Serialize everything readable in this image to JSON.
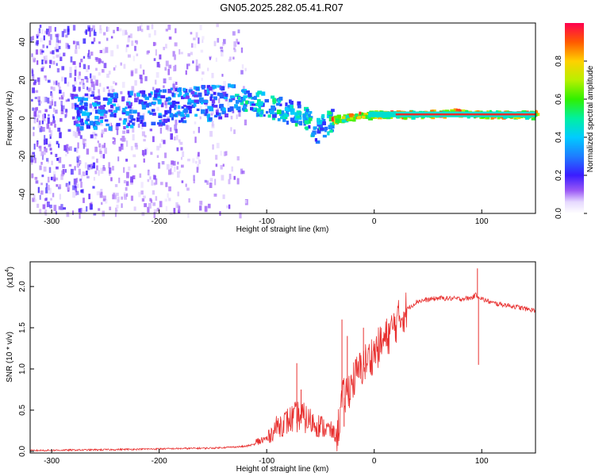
{
  "title": "GN05.2025.282.05.41.R07",
  "chart_data": [
    {
      "id": "spectrogram",
      "type": "heatmap",
      "xlabel": "Height of straight line (km)",
      "ylabel": "Frequency (Hz)",
      "xlim": [
        -320,
        150
      ],
      "ylim": [
        -50,
        50
      ],
      "xticks": [
        -300,
        -200,
        -100,
        0,
        100
      ],
      "yticks": [
        -40,
        -20,
        0,
        20,
        40
      ],
      "colorbar": {
        "label": "Normalized spectral amplitude",
        "range": [
          0,
          1
        ],
        "ticks": [
          "0.0",
          "0.2",
          "0.4",
          "0.6",
          "0.8"
        ]
      },
      "ridge": {
        "x": [
          -320,
          -280,
          -240,
          -200,
          -160,
          -130,
          -110,
          -90,
          -70,
          -60,
          -55,
          -50,
          -40,
          -30,
          -20,
          0,
          40,
          80,
          90,
          150
        ],
        "freq": [
          2,
          3,
          4,
          6,
          8,
          9,
          8,
          5,
          2,
          -3,
          -7,
          -5,
          -1,
          0,
          1,
          2,
          2,
          3,
          2,
          2
        ]
      }
    },
    {
      "id": "snr",
      "type": "line",
      "xlabel": "Height of straight line (km)",
      "ylabel": "SNR (10 * v/v)",
      "scale_note": "(x10",
      "scale_exp": "4",
      "xlim": [
        -320,
        150
      ],
      "ylim": [
        -0.02,
        2.3
      ],
      "xticks": [
        -300,
        -200,
        -100,
        0,
        100
      ],
      "yticks": [
        "0.0",
        "0.5",
        "1.0",
        "1.5",
        "2.0"
      ],
      "series": [
        {
          "name": "SNR",
          "color": "#e8302f",
          "envelope_x": [
            -320,
            -250,
            -150,
            -120,
            -100,
            -90,
            -80,
            -70,
            -60,
            -50,
            -40,
            -35,
            -30,
            -20,
            -10,
            0,
            10,
            20,
            30,
            40,
            60,
            80,
            90,
            95,
            100,
            110,
            120,
            130,
            140,
            150
          ],
          "envelope_y": [
            0.01,
            0.02,
            0.04,
            0.06,
            0.12,
            0.25,
            0.3,
            0.35,
            0.3,
            0.25,
            0.2,
            0.15,
            0.6,
            0.85,
            1.05,
            1.2,
            1.35,
            1.55,
            1.72,
            1.82,
            1.86,
            1.85,
            1.86,
            1.9,
            1.85,
            1.8,
            1.78,
            1.76,
            1.73,
            1.71
          ],
          "spikes": [
            {
              "x": -72,
              "y": 1.07
            },
            {
              "x": -68,
              "y": 0.75
            },
            {
              "x": -30,
              "y": 1.6
            },
            {
              "x": -28,
              "y": 0.3
            },
            {
              "x": -25,
              "y": 1.4
            },
            {
              "x": -10,
              "y": 1.5
            },
            {
              "x": 96,
              "y": 2.22
            },
            {
              "x": 97,
              "y": 1.05
            }
          ]
        }
      ]
    }
  ]
}
